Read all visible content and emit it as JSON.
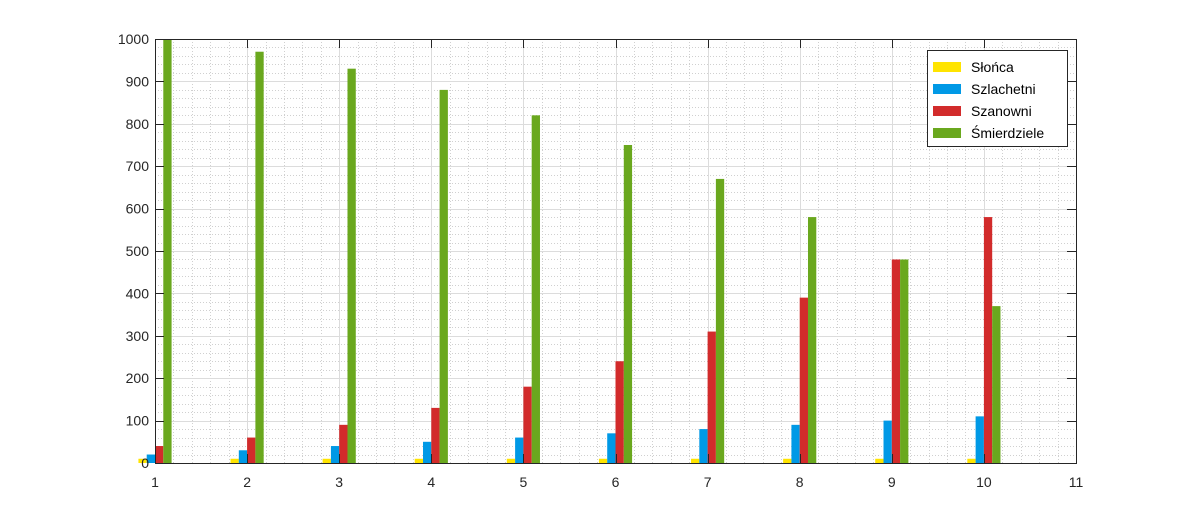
{
  "chart_data": {
    "type": "bar",
    "title": "",
    "xlabel": "",
    "ylabel": "",
    "xlim": [
      1,
      11
    ],
    "ylim": [
      0,
      1000
    ],
    "xticks": [
      1,
      2,
      3,
      4,
      5,
      6,
      7,
      8,
      9,
      10,
      11
    ],
    "yticks": [
      0,
      100,
      200,
      300,
      400,
      500,
      600,
      700,
      800,
      900,
      1000
    ],
    "grid": true,
    "minor_grid": true,
    "legend_position": "top-right",
    "categories": [
      1,
      2,
      3,
      4,
      5,
      6,
      7,
      8,
      9,
      10
    ],
    "series": [
      {
        "name": "Słońca",
        "color": "#ffe400",
        "values": [
          10,
          10,
          10,
          10,
          10,
          10,
          10,
          10,
          10,
          10
        ]
      },
      {
        "name": "Szlachetni",
        "color": "#0099e6",
        "values": [
          20,
          30,
          40,
          50,
          60,
          70,
          80,
          90,
          100,
          110
        ]
      },
      {
        "name": "Szanowni",
        "color": "#d22b2b",
        "values": [
          40,
          60,
          90,
          130,
          180,
          240,
          310,
          390,
          480,
          580
        ]
      },
      {
        "name": "Śmierdziele",
        "color": "#6aa81e",
        "values": [
          1000,
          970,
          930,
          880,
          820,
          750,
          670,
          580,
          480,
          370
        ]
      }
    ]
  }
}
